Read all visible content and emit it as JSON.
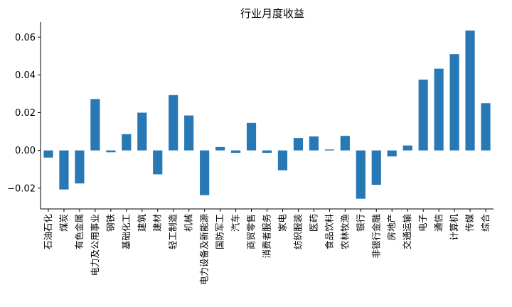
{
  "chart_data": {
    "type": "bar",
    "title": "行业月度收益",
    "xlabel": "",
    "ylabel": "",
    "ylim": [
      -0.031,
      0.068
    ],
    "yticks": [
      -0.02,
      0.0,
      0.02,
      0.04,
      0.06
    ],
    "ytick_labels": [
      "−0.02",
      "0.00",
      "0.02",
      "0.04",
      "0.06"
    ],
    "grid": false,
    "bar_color": "#2878b5",
    "categories": [
      "石油石化",
      "煤炭",
      "有色金属",
      "电力及公用事业",
      "钢铁",
      "基础化工",
      "建筑",
      "建材",
      "轻工制造",
      "机械",
      "电力设备及新能源",
      "国防军工",
      "汽车",
      "商贸零售",
      "消费者服务",
      "家电",
      "纺织服装",
      "医药",
      "食品饮料",
      "农林牧渔",
      "银行",
      "非银行金融",
      "房地产",
      "交通运输",
      "电子",
      "通信",
      "计算机",
      "传媒",
      "综合"
    ],
    "values": [
      -0.0038,
      -0.0207,
      -0.0175,
      0.0272,
      -0.001,
      0.0086,
      0.02,
      -0.0127,
      0.0293,
      0.0185,
      -0.0237,
      0.0018,
      -0.0013,
      0.0146,
      -0.0013,
      -0.0105,
      0.0066,
      0.0074,
      0.0005,
      0.0077,
      -0.0256,
      -0.0182,
      -0.0032,
      0.0026,
      0.0375,
      0.0433,
      0.051,
      0.0635,
      0.025
    ]
  }
}
